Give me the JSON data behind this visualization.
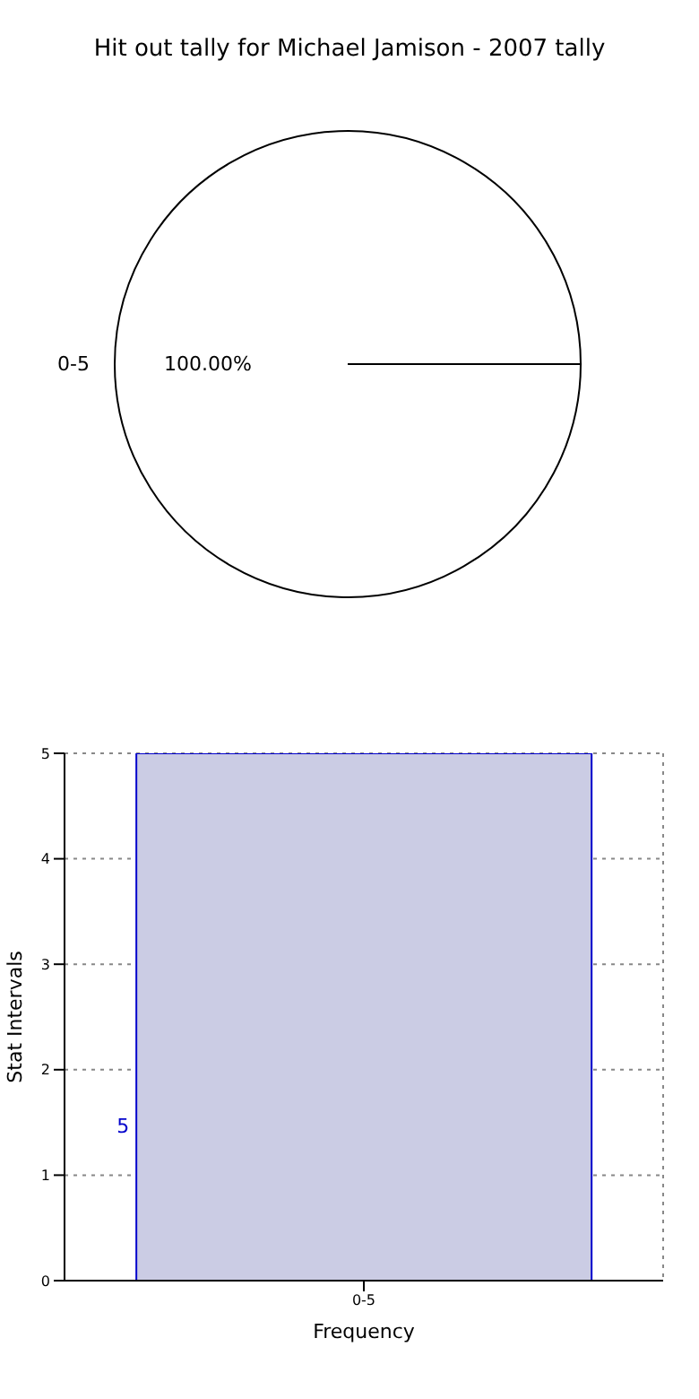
{
  "chart_data": [
    {
      "type": "pie",
      "title": "Hit out tally for Michael Jamison - 2007 tally",
      "categories": [
        "0-5"
      ],
      "values": [
        100
      ],
      "colors": [
        "#ffffff"
      ],
      "value_labels": [
        "100.00%"
      ]
    },
    {
      "type": "bar",
      "categories": [
        "0-5"
      ],
      "values": [
        5
      ],
      "color": "#cbcce4",
      "data_labels": true,
      "xlabel": "Frequency",
      "ylabel": "Stat Intervals",
      "ylim": [
        0,
        5
      ],
      "yticks": [
        0,
        1,
        2,
        3,
        4,
        5
      ],
      "grid": true
    }
  ]
}
